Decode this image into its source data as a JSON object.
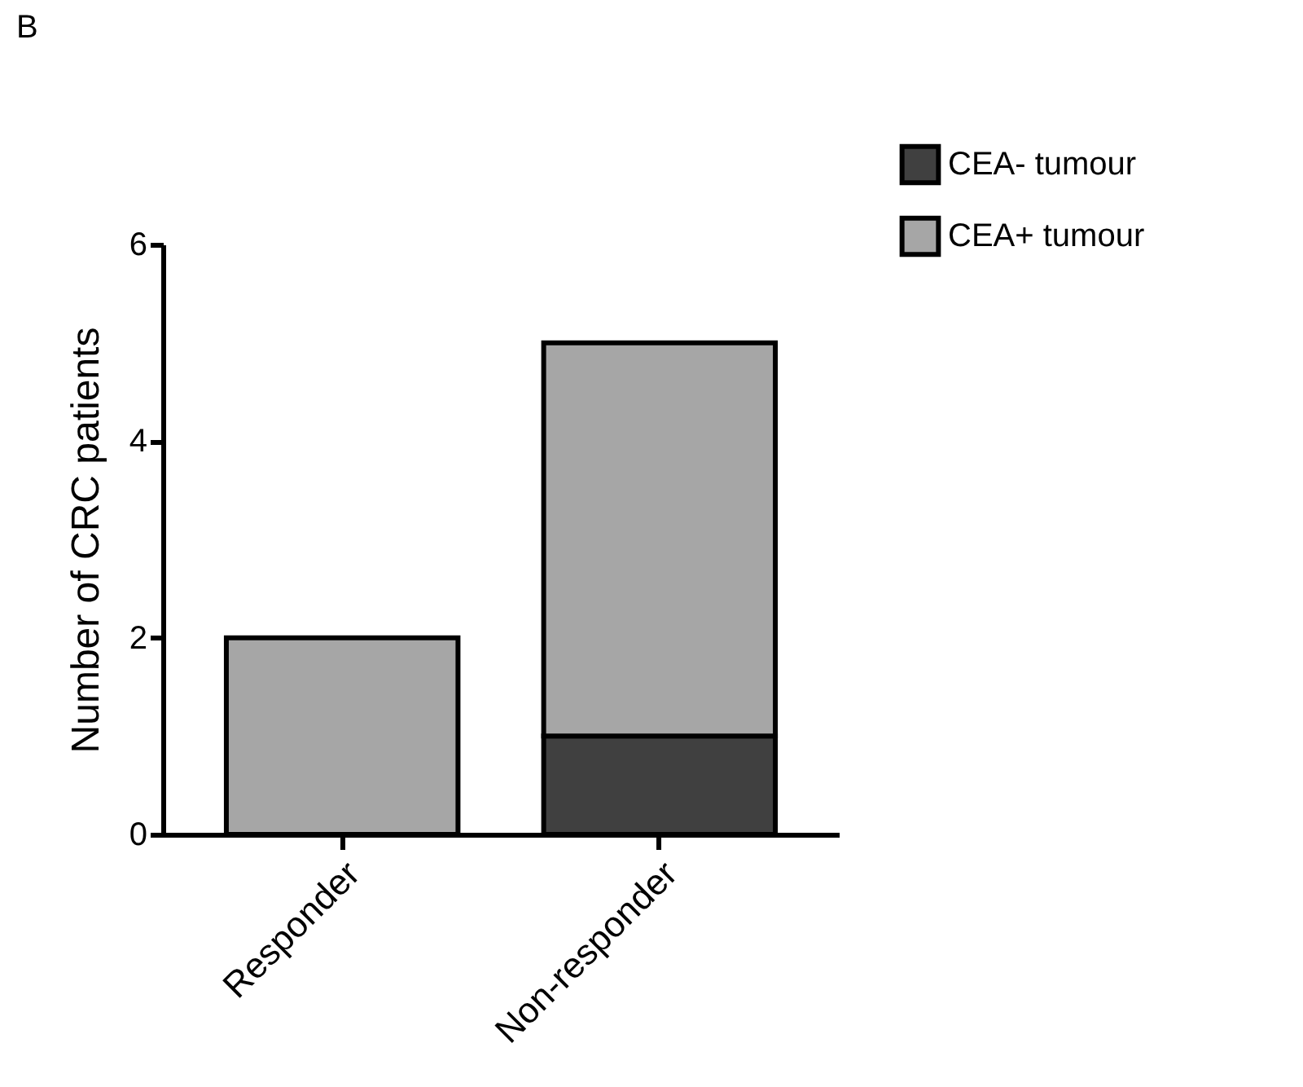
{
  "chart_data": {
    "type": "bar",
    "annotations": [
      "B"
    ],
    "ylabel": "Number of CRC patients",
    "categories": [
      "Responder",
      "Non-responder"
    ],
    "stacked": true,
    "series": [
      {
        "name": "CEA- tumour",
        "color": "#404040",
        "values": [
          0,
          1
        ]
      },
      {
        "name": "CEA+ tumour",
        "color": "#a6a6a6",
        "values": [
          2,
          4
        ]
      }
    ],
    "ylim": [
      0,
      6
    ],
    "yticks": [
      0,
      2,
      4,
      6
    ],
    "legend": "top right",
    "grid": false
  }
}
